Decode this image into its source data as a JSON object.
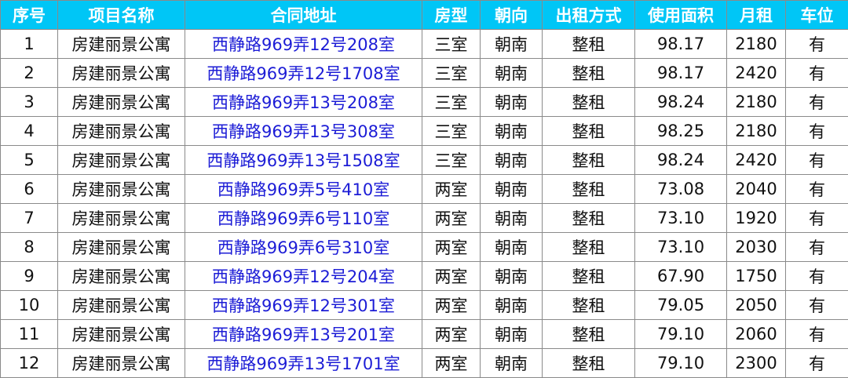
{
  "colors": {
    "header_bg": "#00c6f6",
    "header_text": "#ffffff",
    "address_text": "#1c1cd6"
  },
  "headers": [
    "序号",
    "项目名称",
    "合同地址",
    "房型",
    "朝向",
    "出租方式",
    "使用面积",
    "月租",
    "车位"
  ],
  "rows": [
    [
      "1",
      "房建丽景公寓",
      "西静路969弄12号208室",
      "三室",
      "朝南",
      "整租",
      "98.17",
      "2180",
      "有"
    ],
    [
      "2",
      "房建丽景公寓",
      "西静路969弄12号1708室",
      "三室",
      "朝南",
      "整租",
      "98.17",
      "2420",
      "有"
    ],
    [
      "3",
      "房建丽景公寓",
      "西静路969弄13号208室",
      "三室",
      "朝南",
      "整租",
      "98.24",
      "2180",
      "有"
    ],
    [
      "4",
      "房建丽景公寓",
      "西静路969弄13号308室",
      "三室",
      "朝南",
      "整租",
      "98.25",
      "2180",
      "有"
    ],
    [
      "5",
      "房建丽景公寓",
      "西静路969弄13号1508室",
      "三室",
      "朝南",
      "整租",
      "98.24",
      "2420",
      "有"
    ],
    [
      "6",
      "房建丽景公寓",
      "西静路969弄5号410室",
      "两室",
      "朝南",
      "整租",
      "73.08",
      "2040",
      "有"
    ],
    [
      "7",
      "房建丽景公寓",
      "西静路969弄6号110室",
      "两室",
      "朝南",
      "整租",
      "73.10",
      "1920",
      "有"
    ],
    [
      "8",
      "房建丽景公寓",
      "西静路969弄6号310室",
      "两室",
      "朝南",
      "整租",
      "73.10",
      "2030",
      "有"
    ],
    [
      "9",
      "房建丽景公寓",
      "西静路969弄12号204室",
      "两室",
      "朝南",
      "整租",
      "67.90",
      "1750",
      "有"
    ],
    [
      "10",
      "房建丽景公寓",
      "西静路969弄12号301室",
      "两室",
      "朝南",
      "整租",
      "79.05",
      "2050",
      "有"
    ],
    [
      "11",
      "房建丽景公寓",
      "西静路969弄13号201室",
      "两室",
      "朝南",
      "整租",
      "79.10",
      "2060",
      "有"
    ],
    [
      "12",
      "房建丽景公寓",
      "西静路969弄13号1701室",
      "两室",
      "朝南",
      "整租",
      "79.10",
      "2300",
      "有"
    ]
  ]
}
